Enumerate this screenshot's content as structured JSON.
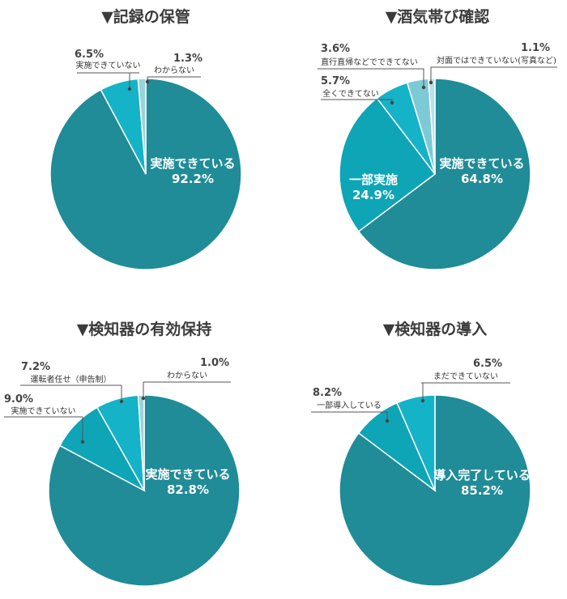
{
  "chart_data": [
    {
      "type": "pie",
      "title": "▼記録の保管",
      "slices": [
        {
          "label": "実施できている",
          "value": 92.2,
          "color": "#1f8c97"
        },
        {
          "label": "実施できていない",
          "value": 6.5,
          "color": "#15b3c7"
        },
        {
          "label": "わからない",
          "value": 1.3,
          "color": "#9ad3dc"
        }
      ]
    },
    {
      "type": "pie",
      "title": "▼酒気帯び確認",
      "slices": [
        {
          "label": "実施できている",
          "value": 64.8,
          "color": "#1f8c97"
        },
        {
          "label": "一部実施",
          "value": 24.9,
          "color": "#0ea5b7"
        },
        {
          "label": "全くできてない",
          "value": 5.7,
          "color": "#15b3c7"
        },
        {
          "label": "直行直帰などでできてない",
          "value": 3.6,
          "color": "#7ccad6"
        },
        {
          "label": "対面ではできていない(写真など)",
          "value": 1.1,
          "color": "#b9e1e8"
        }
      ]
    },
    {
      "type": "pie",
      "title": "▼検知器の有効保持",
      "slices": [
        {
          "label": "実施できている",
          "value": 82.8,
          "color": "#1f8c97"
        },
        {
          "label": "実施できていない",
          "value": 9.0,
          "color": "#0ea5b7"
        },
        {
          "label": "運転者任せ（申告制）",
          "value": 7.2,
          "color": "#15b3c7"
        },
        {
          "label": "わからない",
          "value": 1.0,
          "color": "#9ad3dc"
        }
      ]
    },
    {
      "type": "pie",
      "title": "▼検知器の導入",
      "slices": [
        {
          "label": "導入完了している",
          "value": 85.2,
          "color": "#1f8c97"
        },
        {
          "label": "一部導入している",
          "value": 8.2,
          "color": "#0ea5b7"
        },
        {
          "label": "まだできていない",
          "value": 6.5,
          "color": "#15b3c7"
        }
      ]
    }
  ]
}
